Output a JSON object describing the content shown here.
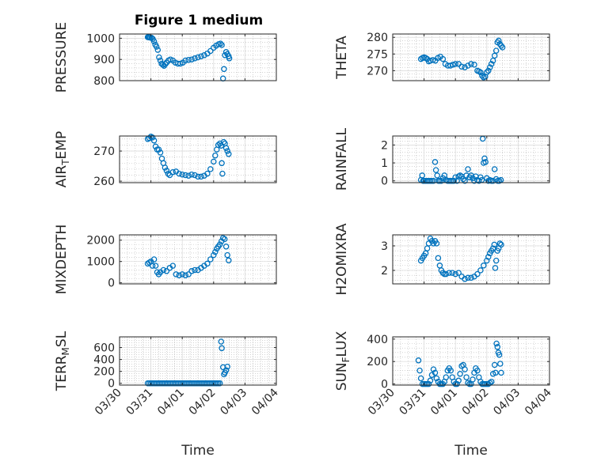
{
  "figure": {
    "title": "Figure 1 medium",
    "xlabel": "Time"
  },
  "colors": {
    "marker": "#0072BD",
    "axes": "#262626",
    "grid": "#b8b8b8"
  },
  "chart_data": [
    {
      "type": "scatter",
      "title": "Figure 1 medium",
      "ylabel_parts": [
        "PRESSURE"
      ],
      "ylim": [
        800,
        1020
      ],
      "yticks": [
        800,
        900,
        1000
      ],
      "ytick_labels": [
        "800",
        "900",
        "1000"
      ],
      "xticks": [
        "03/30",
        "03/31",
        "04/01",
        "04/02",
        "04/03",
        "04/04"
      ],
      "show_xtick_labels": false,
      "x": [
        0.9,
        0.92,
        0.95,
        0.98,
        1.02,
        1.06,
        1.1,
        1.14,
        1.18,
        1.22,
        1.26,
        1.3,
        1.34,
        1.38,
        1.42,
        1.46,
        1.5,
        1.56,
        1.62,
        1.7,
        1.78,
        1.86,
        1.94,
        2.02,
        2.1,
        2.2,
        2.3,
        2.4,
        2.5,
        2.6,
        2.7,
        2.8,
        2.9,
        3.0,
        3.08,
        3.16,
        3.22,
        3.26,
        3.3,
        3.33,
        3.36,
        3.4,
        3.44,
        3.48,
        3.5
      ],
      "y": [
        1005,
        1005,
        1004,
        1003,
        1002,
        997,
        985,
        970,
        960,
        945,
        910,
        895,
        880,
        875,
        870,
        878,
        885,
        895,
        900,
        895,
        885,
        880,
        880,
        885,
        895,
        898,
        900,
        905,
        910,
        915,
        920,
        928,
        940,
        955,
        965,
        972,
        975,
        968,
        810,
        855,
        920,
        935,
        925,
        915,
        905
      ]
    },
    {
      "type": "scatter",
      "ylabel_parts": [
        "THETA"
      ],
      "ylim": [
        267,
        281
      ],
      "yticks": [
        270,
        275,
        280
      ],
      "ytick_labels": [
        "270",
        "275",
        "280"
      ],
      "xticks": [
        "03/30",
        "03/31",
        "04/01",
        "04/02",
        "04/03",
        "04/04"
      ],
      "show_xtick_labels": false,
      "x": [
        0.9,
        0.95,
        1.0,
        1.05,
        1.1,
        1.15,
        1.2,
        1.28,
        1.36,
        1.44,
        1.52,
        1.6,
        1.68,
        1.76,
        1.84,
        1.92,
        2.0,
        2.1,
        2.2,
        2.3,
        2.4,
        2.5,
        2.6,
        2.7,
        2.75,
        2.8,
        2.85,
        2.9,
        2.95,
        3.0,
        3.05,
        3.1,
        3.15,
        3.2,
        3.25,
        3.3,
        3.34,
        3.38,
        3.42,
        3.46,
        3.5
      ],
      "y": [
        273.5,
        273.8,
        274.0,
        273.8,
        273.5,
        272.8,
        273.0,
        273.2,
        273.0,
        273.8,
        274.2,
        273.5,
        272.0,
        271.5,
        271.5,
        271.8,
        272.0,
        272.0,
        271.2,
        271.0,
        271.5,
        272.0,
        271.8,
        270.0,
        269.8,
        269.5,
        268.5,
        268.0,
        268.2,
        269.5,
        270.0,
        271.0,
        272.0,
        273.0,
        274.5,
        276.0,
        278.5,
        279.0,
        278.0,
        277.5,
        277.0
      ]
    },
    {
      "type": "scatter",
      "ylabel_parts": [
        "AIR",
        "T",
        "EMP"
      ],
      "ylim": [
        259.5,
        275
      ],
      "yticks": [
        260,
        270
      ],
      "ytick_labels": [
        "260",
        "270"
      ],
      "xticks": [
        "03/30",
        "03/31",
        "04/01",
        "04/02",
        "04/03",
        "04/04"
      ],
      "show_xtick_labels": false,
      "x": [
        0.9,
        0.95,
        1.0,
        1.05,
        1.1,
        1.15,
        1.2,
        1.25,
        1.3,
        1.35,
        1.4,
        1.45,
        1.5,
        1.55,
        1.6,
        1.7,
        1.8,
        1.9,
        2.0,
        2.1,
        2.2,
        2.3,
        2.4,
        2.5,
        2.6,
        2.7,
        2.8,
        2.9,
        3.0,
        3.05,
        3.1,
        3.15,
        3.2,
        3.24,
        3.26,
        3.28,
        3.32,
        3.36,
        3.4,
        3.44,
        3.48
      ],
      "y": [
        274,
        274.3,
        274.8,
        274.5,
        273.5,
        271.5,
        270.5,
        270.5,
        269.5,
        267.5,
        266.0,
        264.5,
        263.5,
        262.5,
        262.0,
        263.0,
        263.2,
        262.5,
        262.2,
        262.0,
        261.8,
        262.2,
        262.0,
        261.5,
        261.5,
        261.8,
        262.5,
        264.0,
        266.5,
        268.5,
        270.5,
        272.0,
        272.5,
        271.8,
        266.0,
        262.5,
        273.0,
        272.5,
        271.0,
        270.0,
        269.0
      ]
    },
    {
      "type": "scatter",
      "ylabel_parts": [
        "RAINFALL"
      ],
      "ylim": [
        -0.1,
        2.5
      ],
      "yticks": [
        0,
        1,
        2
      ],
      "ytick_labels": [
        "0",
        "1",
        "2"
      ],
      "xticks": [
        "03/30",
        "03/31",
        "04/01",
        "04/02",
        "04/03",
        "04/04"
      ],
      "show_xtick_labels": false,
      "x": [
        0.9,
        0.94,
        0.97,
        1.0,
        1.05,
        1.1,
        1.15,
        1.2,
        1.25,
        1.3,
        1.35,
        1.38,
        1.42,
        1.46,
        1.5,
        1.55,
        1.6,
        1.65,
        1.7,
        1.75,
        1.8,
        1.85,
        1.9,
        1.95,
        2.0,
        2.05,
        2.1,
        2.15,
        2.2,
        2.25,
        2.3,
        2.35,
        2.4,
        2.45,
        2.5,
        2.55,
        2.6,
        2.65,
        2.7,
        2.75,
        2.8,
        2.84,
        2.87,
        2.9,
        2.93,
        2.96,
        3.0,
        3.05,
        3.1,
        3.15,
        3.2,
        3.25,
        3.3,
        3.35,
        3.4,
        3.45
      ],
      "y": [
        0.05,
        0.3,
        0.0,
        0.0,
        0.0,
        0.0,
        0.0,
        0.0,
        0.0,
        0.0,
        1.05,
        0.6,
        0.3,
        0.0,
        0.0,
        0.0,
        0.15,
        0.3,
        0.05,
        0.0,
        0.0,
        0.0,
        0.0,
        0.0,
        0.2,
        0.0,
        0.25,
        0.3,
        0.25,
        0.1,
        0.0,
        0.3,
        0.65,
        0.2,
        0.3,
        0.15,
        0.0,
        0.25,
        0.05,
        0.0,
        0.2,
        0.05,
        2.35,
        1.0,
        1.25,
        1.05,
        0.15,
        0.0,
        0.05,
        0.0,
        0.0,
        0.65,
        0.1,
        0.0,
        0.0,
        0.05
      ]
    },
    {
      "type": "scatter",
      "ylabel_parts": [
        "MIXDEPTH"
      ],
      "ylim": [
        -50,
        2250
      ],
      "yticks": [
        0,
        1000,
        2000
      ],
      "ytick_labels": [
        "0",
        "1000",
        "2000"
      ],
      "xticks": [
        "03/30",
        "03/31",
        "04/01",
        "04/02",
        "04/03",
        "04/04"
      ],
      "show_xtick_labels": false,
      "x": [
        0.9,
        0.95,
        1.0,
        1.05,
        1.1,
        1.15,
        1.2,
        1.25,
        1.3,
        1.4,
        1.5,
        1.6,
        1.7,
        1.8,
        1.9,
        2.0,
        2.1,
        2.2,
        2.3,
        2.4,
        2.5,
        2.6,
        2.7,
        2.8,
        2.9,
        3.0,
        3.05,
        3.1,
        3.15,
        3.2,
        3.25,
        3.3,
        3.35,
        3.4,
        3.44,
        3.48
      ],
      "y": [
        900,
        950,
        1000,
        800,
        1100,
        800,
        500,
        400,
        500,
        600,
        550,
        700,
        800,
        400,
        350,
        400,
        350,
        400,
        550,
        600,
        600,
        700,
        800,
        900,
        1100,
        1300,
        1450,
        1600,
        1700,
        1800,
        1950,
        2100,
        2050,
        1700,
        1300,
        1050
      ]
    },
    {
      "type": "scatter",
      "ylabel_parts": [
        "H2OMIXRA"
      ],
      "ylim": [
        1.45,
        3.45
      ],
      "yticks": [
        2,
        3
      ],
      "ytick_labels": [
        "2",
        "3"
      ],
      "xticks": [
        "03/30",
        "03/31",
        "04/01",
        "04/02",
        "04/03",
        "04/04"
      ],
      "show_xtick_labels": false,
      "x": [
        0.9,
        0.95,
        1.0,
        1.05,
        1.1,
        1.15,
        1.2,
        1.25,
        1.3,
        1.35,
        1.4,
        1.45,
        1.5,
        1.55,
        1.6,
        1.65,
        1.7,
        1.8,
        1.9,
        2.0,
        2.1,
        2.2,
        2.3,
        2.4,
        2.5,
        2.6,
        2.7,
        2.8,
        2.9,
        3.0,
        3.05,
        3.1,
        3.15,
        3.2,
        3.24,
        3.27,
        3.3,
        3.34,
        3.38,
        3.42,
        3.46
      ],
      "y": [
        2.4,
        2.5,
        2.6,
        2.7,
        2.9,
        3.1,
        3.3,
        3.2,
        3.1,
        3.2,
        3.1,
        2.5,
        2.2,
        2.0,
        1.9,
        1.85,
        1.85,
        1.9,
        1.9,
        1.85,
        1.9,
        1.75,
        1.65,
        1.7,
        1.7,
        1.75,
        1.85,
        2.0,
        2.2,
        2.4,
        2.55,
        2.7,
        2.8,
        2.9,
        3.05,
        2.1,
        2.4,
        2.8,
        2.9,
        3.1,
        3.05
      ]
    },
    {
      "type": "scatter",
      "ylabel_parts": [
        "TERR",
        "M",
        "SL"
      ],
      "ylim": [
        -30,
        780
      ],
      "yticks": [
        0,
        200,
        400,
        600
      ],
      "ytick_labels": [
        "0",
        "200",
        "400",
        "600"
      ],
      "xticks": [
        "03/30",
        "03/31",
        "04/01",
        "04/02",
        "04/03",
        "04/04"
      ],
      "xtick_labels": [
        "03/30",
        "03/31",
        "04/01",
        "04/02",
        "04/03",
        "04/04"
      ],
      "show_xtick_labels": true,
      "xlabel": "Time",
      "x": [
        0.9,
        0.95,
        1.0,
        1.05,
        1.1,
        1.15,
        1.2,
        1.25,
        1.3,
        1.35,
        1.4,
        1.45,
        1.5,
        1.55,
        1.6,
        1.65,
        1.7,
        1.75,
        1.8,
        1.85,
        1.9,
        1.95,
        2.0,
        2.05,
        2.1,
        2.15,
        2.2,
        2.25,
        2.3,
        2.35,
        2.4,
        2.45,
        2.5,
        2.55,
        2.6,
        2.65,
        2.7,
        2.75,
        2.8,
        2.85,
        2.9,
        2.95,
        3.0,
        3.05,
        3.1,
        3.15,
        3.2,
        3.24,
        3.26,
        3.3,
        3.33,
        3.36,
        3.4,
        3.44
      ],
      "y": [
        0,
        0,
        0,
        0,
        0,
        0,
        0,
        0,
        0,
        0,
        0,
        0,
        0,
        0,
        0,
        0,
        0,
        0,
        0,
        0,
        0,
        0,
        0,
        0,
        0,
        0,
        0,
        0,
        0,
        0,
        0,
        0,
        0,
        0,
        0,
        0,
        0,
        0,
        0,
        0,
        0,
        0,
        0,
        0,
        0,
        0,
        0,
        700,
        590,
        270,
        150,
        180,
        220,
        280
      ]
    },
    {
      "type": "scatter",
      "ylabel_parts": [
        "SUN",
        "F",
        "LUX"
      ],
      "ylim": [
        -10,
        420
      ],
      "yticks": [
        0,
        200,
        400
      ],
      "ytick_labels": [
        "0",
        "200",
        "400"
      ],
      "xticks": [
        "03/30",
        "03/31",
        "04/01",
        "04/02",
        "04/03",
        "04/04"
      ],
      "xtick_labels": [
        "03/30",
        "03/31",
        "04/01",
        "04/02",
        "04/03",
        "04/04"
      ],
      "show_xtick_labels": true,
      "xlabel": "Time",
      "x": [
        0.82,
        0.86,
        0.9,
        0.95,
        1.0,
        1.05,
        1.1,
        1.15,
        1.2,
        1.25,
        1.3,
        1.35,
        1.4,
        1.45,
        1.5,
        1.55,
        1.6,
        1.65,
        1.7,
        1.75,
        1.8,
        1.85,
        1.9,
        1.95,
        2.0,
        2.05,
        2.1,
        2.15,
        2.2,
        2.25,
        2.3,
        2.35,
        2.4,
        2.45,
        2.5,
        2.55,
        2.6,
        2.65,
        2.7,
        2.75,
        2.8,
        2.85,
        2.9,
        2.95,
        3.0,
        3.05,
        3.1,
        3.15,
        3.2,
        3.25,
        3.28,
        3.31,
        3.34,
        3.37,
        3.4,
        3.43,
        3.46
      ],
      "y": [
        210,
        120,
        50,
        0,
        0,
        0,
        0,
        0,
        30,
        80,
        130,
        100,
        50,
        20,
        0,
        0,
        0,
        20,
        60,
        120,
        140,
        120,
        60,
        20,
        0,
        0,
        30,
        90,
        160,
        170,
        130,
        60,
        10,
        0,
        0,
        40,
        100,
        140,
        120,
        60,
        20,
        0,
        0,
        0,
        0,
        0,
        10,
        20,
        90,
        170,
        100,
        360,
        330,
        280,
        260,
        180,
        100
      ]
    }
  ]
}
